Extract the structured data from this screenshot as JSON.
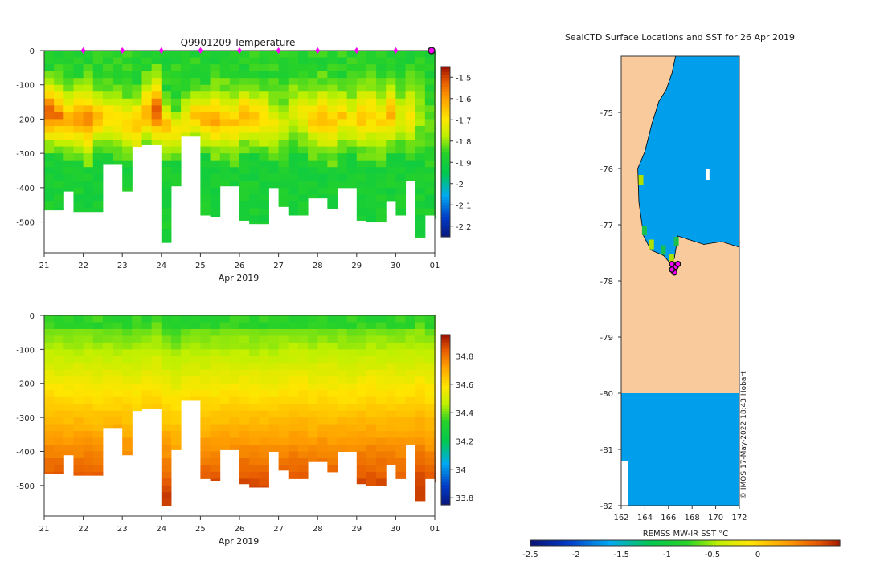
{
  "chart_data": [
    {
      "type": "heatmap",
      "name": "temperature-section",
      "title": "Q9901209  Temperature",
      "xlabel": "Apr 2019",
      "ylabel": "",
      "x_tick_labels": [
        "21",
        "22",
        "23",
        "24",
        "25",
        "26",
        "27",
        "28",
        "29",
        "30",
        "01"
      ],
      "y_tick_labels": [
        "0",
        "-100",
        "-200",
        "-300",
        "-400",
        "-500"
      ],
      "ylim": [
        -590,
        0
      ],
      "xlim": [
        21,
        31
      ],
      "colorbar": {
        "ticks": [
          "-1.5",
          "-1.6",
          "-1.7",
          "-1.8",
          "-1.9",
          "-2",
          "-2.1",
          "-2.2"
        ],
        "range": [
          -2.25,
          -1.45
        ]
      },
      "profile_markers_x": [
        22,
        23,
        24,
        25,
        26,
        27,
        28,
        29,
        30
      ],
      "profiles": {
        "x": [
          21.0,
          21.25,
          21.5,
          21.75,
          22.0,
          22.25,
          22.5,
          22.75,
          23.0,
          23.25,
          23.5,
          23.75,
          24.0,
          24.25,
          24.5,
          24.75,
          25.0,
          25.25,
          25.5,
          25.75,
          26.0,
          26.25,
          26.5,
          26.75,
          27.0,
          27.25,
          27.5,
          27.75,
          28.0,
          28.25,
          28.5,
          28.75,
          29.0,
          29.25,
          29.5,
          29.75,
          30.0,
          30.25,
          30.5,
          30.75,
          31.0
        ],
        "max_depth": [
          465,
          465,
          410,
          470,
          470,
          470,
          330,
          330,
          410,
          280,
          275,
          275,
          560,
          395,
          250,
          250,
          480,
          485,
          395,
          395,
          495,
          505,
          505,
          400,
          455,
          480,
          480,
          430,
          430,
          460,
          400,
          400,
          495,
          500,
          500,
          440,
          480,
          380,
          545,
          480,
          490
        ],
        "mixed_layer_top": [
          60,
          70,
          80,
          75,
          70,
          90,
          85,
          80,
          100,
          95,
          60,
          40,
          120,
          150,
          90,
          80,
          95,
          85,
          80,
          85,
          75,
          85,
          80,
          90,
          80,
          60,
          60,
          90,
          70,
          75,
          80,
          90,
          70,
          55,
          75,
          70,
          80,
          60,
          40,
          80,
          0
        ],
        "max_temp": [
          -1.5,
          -1.55,
          -1.6,
          -1.58,
          -1.55,
          -1.6,
          -1.65,
          -1.68,
          -1.66,
          -1.62,
          -1.6,
          -1.5,
          -1.62,
          -1.68,
          -1.7,
          -1.65,
          -1.6,
          -1.58,
          -1.62,
          -1.64,
          -1.6,
          -1.63,
          -1.65,
          -1.7,
          -1.75,
          -1.72,
          -1.7,
          -1.65,
          -1.62,
          -1.63,
          -1.65,
          -1.68,
          -1.63,
          -1.65,
          -1.66,
          -1.6,
          -1.72,
          -1.68,
          -1.78,
          -1.82,
          -1.8
        ]
      }
    },
    {
      "type": "heatmap",
      "name": "salinity-section",
      "title": "",
      "xlabel": "Apr 2019",
      "ylabel": "",
      "x_tick_labels": [
        "21",
        "22",
        "23",
        "24",
        "25",
        "26",
        "27",
        "28",
        "29",
        "30",
        "01"
      ],
      "y_tick_labels": [
        "0",
        "-100",
        "-200",
        "-300",
        "-400",
        "-500"
      ],
      "ylim": [
        -590,
        0
      ],
      "xlim": [
        21,
        31
      ],
      "colorbar": {
        "ticks": [
          "34.8",
          "34.6",
          "34.4",
          "34.2",
          "34",
          "33.8"
        ],
        "range": [
          33.75,
          34.95
        ]
      }
    },
    {
      "type": "heatmap",
      "name": "sst-map",
      "title": "SealCTD Surface Locations and SST for 26 Apr 2019",
      "xlabel": "",
      "ylabel": "",
      "x_tick_labels": [
        "162",
        "164",
        "166",
        "168",
        "170",
        "172"
      ],
      "y_tick_labels": [
        "-75",
        "-76",
        "-77",
        "-78",
        "-79",
        "-80",
        "-81",
        "-82"
      ],
      "xlim": [
        162,
        172
      ],
      "ylim": [
        -82,
        -74
      ],
      "colorbar": {
        "label": "REMSS MW-IR SST °C",
        "ticks": [
          "-2.5",
          "-2",
          "-1.5",
          "-1",
          "-0.5",
          "0"
        ],
        "range": [
          -2.5,
          0.9
        ]
      },
      "sst_value": -1.7,
      "land_color": "#f9cb9c",
      "seal_positions": [
        {
          "lon": 166.3,
          "lat": -77.7
        },
        {
          "lon": 166.6,
          "lat": -77.75
        },
        {
          "lon": 166.8,
          "lat": -77.7
        },
        {
          "lon": 166.5,
          "lat": -77.85
        },
        {
          "lon": 166.3,
          "lat": -77.8
        }
      ],
      "credit": "© IMOS 17-May-2022 18:43 Hobart"
    }
  ],
  "colors": {
    "land": "#f9cb9c",
    "sea_sst": "#00a2f2",
    "marker": "#ff00ff",
    "no_data": "#ffffff"
  }
}
